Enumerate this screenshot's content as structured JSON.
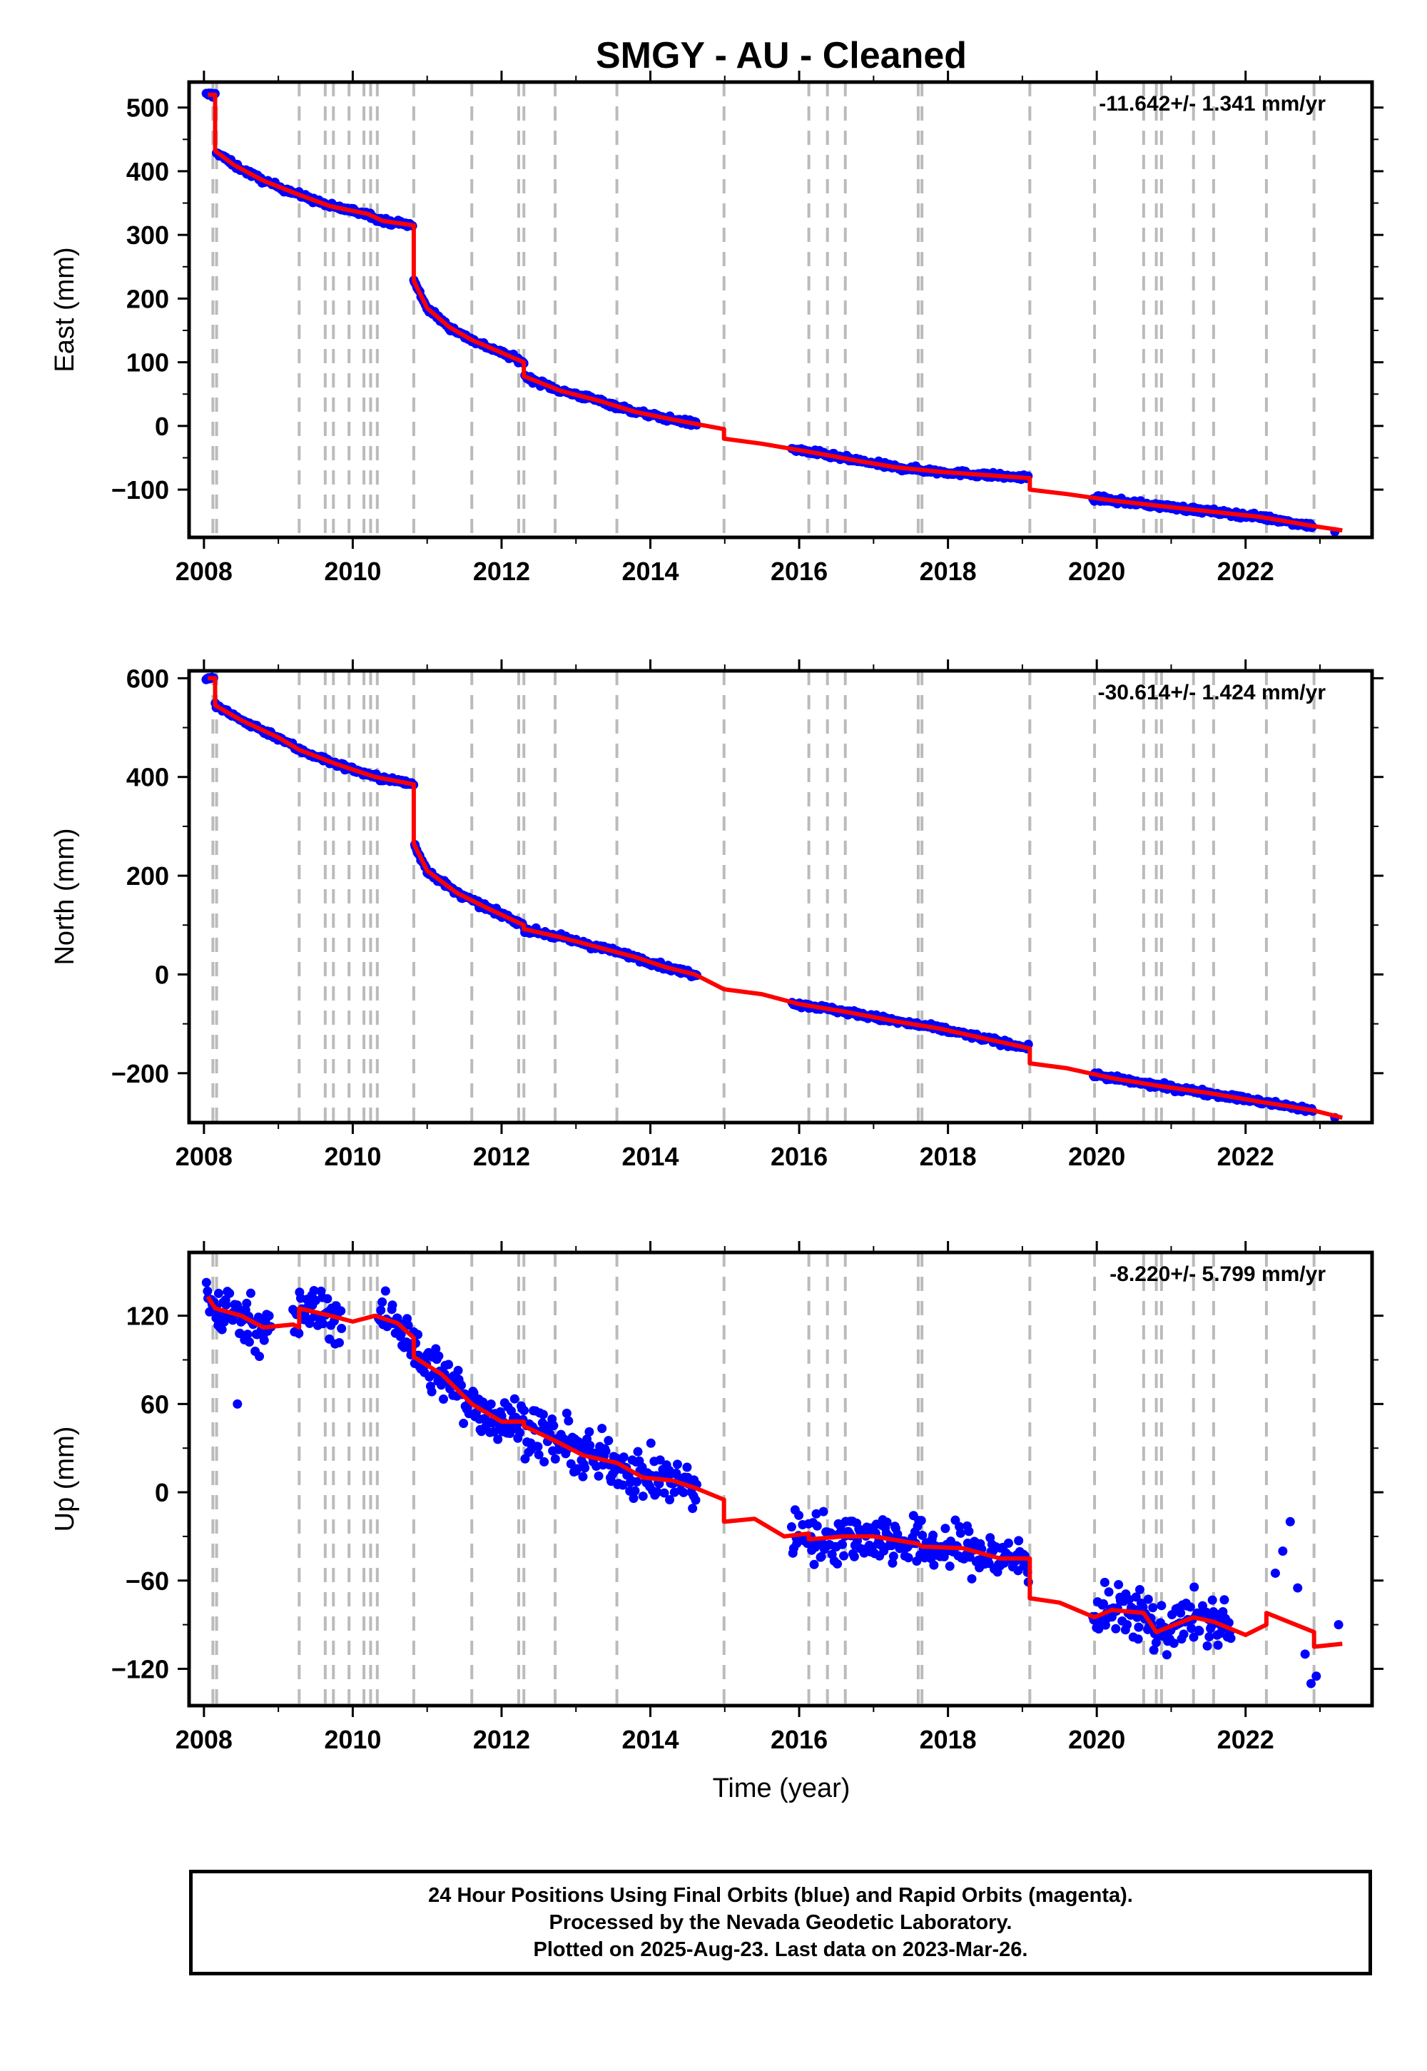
{
  "colors": {
    "final_orbits": "#0000ff",
    "model": "#ff0000",
    "offsets": "#bbbbbb",
    "frame": "#000000"
  },
  "chart_data": [
    {
      "type": "scatter",
      "title": "SMGY  - AU - Cleaned",
      "ylabel": "East (mm)",
      "xlabel": "",
      "rate": "-11.642+/- 1.341 mm/yr",
      "xlim": [
        2007.8,
        2023.7
      ],
      "ylim": [
        -175,
        540
      ],
      "yticks": [
        500,
        400,
        300,
        200,
        100,
        0,
        -100
      ],
      "ytick_labels": [
        "500",
        "400",
        "300",
        "200",
        "100",
        "0",
        "−100"
      ],
      "xticks": [
        2008,
        2010,
        2012,
        2014,
        2016,
        2018,
        2020,
        2022
      ],
      "xtick_labels": [
        "2008",
        "2010",
        "2012",
        "2014",
        "2016",
        "2018",
        "2020",
        "2022"
      ],
      "grid": false,
      "offset_lines": [
        2008.12,
        2008.17,
        2009.28,
        2009.63,
        2009.74,
        2009.95,
        2010.15,
        2010.24,
        2010.33,
        2010.82,
        2011.6,
        2012.23,
        2012.3,
        2012.72,
        2013.55,
        2014.99,
        2016.13,
        2016.38,
        2016.62,
        2017.6,
        2017.65,
        2019.1,
        2019.97,
        2020.63,
        2020.8,
        2020.87,
        2021.3,
        2021.57,
        2022.28,
        2022.92
      ],
      "data_segments": [
        [
          2008.03,
          2008.13
        ],
        [
          2008.15,
          2010.82
        ],
        [
          2010.83,
          2014.62
        ],
        [
          2015.9,
          2019.08
        ],
        [
          2019.95,
          2022.9
        ]
      ],
      "extra_points": [
        [
          2023.2,
          -166
        ]
      ],
      "scatter": 3,
      "model": [
        [
          2008.05,
          520
        ],
        [
          2008.15,
          520
        ],
        [
          2008.15,
          432
        ],
        [
          2008.4,
          410
        ],
        [
          2008.8,
          385
        ],
        [
          2009.28,
          363
        ],
        [
          2009.7,
          345
        ],
        [
          2010.2,
          333
        ],
        [
          2010.4,
          322
        ],
        [
          2010.82,
          315
        ],
        [
          2010.82,
          228
        ],
        [
          2011.0,
          185
        ],
        [
          2011.3,
          155
        ],
        [
          2011.6,
          135
        ],
        [
          2012.0,
          115
        ],
        [
          2012.3,
          100
        ],
        [
          2012.3,
          78
        ],
        [
          2012.8,
          55
        ],
        [
          2013.3,
          40
        ],
        [
          2013.8,
          22
        ],
        [
          2014.3,
          10
        ],
        [
          2014.99,
          -5
        ],
        [
          2014.99,
          -20
        ],
        [
          2015.5,
          -28
        ],
        [
          2016.2,
          -42
        ],
        [
          2016.8,
          -55
        ],
        [
          2017.3,
          -65
        ],
        [
          2017.9,
          -72
        ],
        [
          2018.5,
          -77
        ],
        [
          2019.1,
          -82
        ],
        [
          2019.1,
          -100
        ],
        [
          2019.6,
          -107
        ],
        [
          2020.2,
          -117
        ],
        [
          2020.8,
          -125
        ],
        [
          2021.5,
          -134
        ],
        [
          2022.2,
          -143
        ],
        [
          2022.9,
          -157
        ],
        [
          2023.3,
          -164
        ]
      ]
    },
    {
      "type": "scatter",
      "title": "",
      "ylabel": "North (mm)",
      "xlabel": "",
      "rate": "-30.614+/- 1.424 mm/yr",
      "xlim": [
        2007.8,
        2023.7
      ],
      "ylim": [
        -300,
        615
      ],
      "yticks": [
        600,
        400,
        200,
        0,
        -200
      ],
      "ytick_labels": [
        "600",
        "400",
        "200",
        "0",
        "−200"
      ],
      "xticks": [
        2008,
        2010,
        2012,
        2014,
        2016,
        2018,
        2020,
        2022
      ],
      "xtick_labels": [
        "2008",
        "2010",
        "2012",
        "2014",
        "2016",
        "2018",
        "2020",
        "2022"
      ],
      "grid": false,
      "offset_lines": [
        2008.12,
        2008.17,
        2009.28,
        2009.63,
        2009.74,
        2009.95,
        2010.15,
        2010.24,
        2010.33,
        2010.82,
        2011.6,
        2012.23,
        2012.3,
        2012.72,
        2013.55,
        2014.99,
        2016.13,
        2016.38,
        2016.62,
        2017.6,
        2017.65,
        2019.1,
        2019.97,
        2020.63,
        2020.8,
        2020.87,
        2021.3,
        2021.57,
        2022.28,
        2022.92
      ],
      "data_segments": [
        [
          2008.03,
          2008.13
        ],
        [
          2008.15,
          2010.82
        ],
        [
          2010.83,
          2014.62
        ],
        [
          2015.9,
          2019.08
        ],
        [
          2019.95,
          2022.9
        ]
      ],
      "extra_points": [
        [
          2023.2,
          -290
        ]
      ],
      "scatter": 4,
      "model": [
        [
          2008.05,
          600
        ],
        [
          2008.15,
          600
        ],
        [
          2008.15,
          545
        ],
        [
          2008.5,
          515
        ],
        [
          2009.0,
          480
        ],
        [
          2009.28,
          455
        ],
        [
          2009.8,
          425
        ],
        [
          2010.3,
          400
        ],
        [
          2010.82,
          385
        ],
        [
          2010.82,
          265
        ],
        [
          2011.0,
          210
        ],
        [
          2011.4,
          165
        ],
        [
          2011.8,
          135
        ],
        [
          2012.3,
          100
        ],
        [
          2012.3,
          92
        ],
        [
          2012.8,
          75
        ],
        [
          2013.3,
          55
        ],
        [
          2013.8,
          35
        ],
        [
          2014.2,
          15
        ],
        [
          2014.6,
          0
        ],
        [
          2014.99,
          -30
        ],
        [
          2015.5,
          -40
        ],
        [
          2016.0,
          -60
        ],
        [
          2016.6,
          -75
        ],
        [
          2017.3,
          -95
        ],
        [
          2017.9,
          -110
        ],
        [
          2018.5,
          -130
        ],
        [
          2019.1,
          -150
        ],
        [
          2019.1,
          -180
        ],
        [
          2019.6,
          -190
        ],
        [
          2020.2,
          -210
        ],
        [
          2020.8,
          -225
        ],
        [
          2021.5,
          -240
        ],
        [
          2022.2,
          -258
        ],
        [
          2022.9,
          -275
        ],
        [
          2023.3,
          -290
        ]
      ]
    },
    {
      "type": "scatter",
      "title": "",
      "ylabel": "Up (mm)",
      "xlabel": "Time (year)",
      "rate": "-8.220+/- 5.799 mm/yr",
      "xlim": [
        2007.8,
        2023.7
      ],
      "ylim": [
        -145,
        163
      ],
      "yticks": [
        120,
        60,
        0,
        -60,
        -120
      ],
      "ytick_labels": [
        "120",
        "60",
        "0",
        "−60",
        "−120"
      ],
      "xticks": [
        2008,
        2010,
        2012,
        2014,
        2016,
        2018,
        2020,
        2022
      ],
      "xtick_labels": [
        "2008",
        "2010",
        "2012",
        "2014",
        "2016",
        "2018",
        "2020",
        "2022"
      ],
      "grid": false,
      "offset_lines": [
        2008.12,
        2008.17,
        2009.28,
        2009.63,
        2009.74,
        2009.95,
        2010.15,
        2010.24,
        2010.33,
        2010.82,
        2011.6,
        2012.23,
        2012.3,
        2012.72,
        2013.55,
        2014.99,
        2016.13,
        2016.38,
        2016.62,
        2017.6,
        2017.65,
        2019.1,
        2019.97,
        2020.63,
        2020.8,
        2020.87,
        2021.3,
        2021.57,
        2022.28,
        2022.92
      ],
      "data_segments": [
        [
          2008.03,
          2008.9
        ],
        [
          2009.2,
          2009.85
        ],
        [
          2010.35,
          2010.82
        ],
        [
          2010.83,
          2014.62
        ],
        [
          2015.9,
          2019.08
        ],
        [
          2019.95,
          2021.8
        ]
      ],
      "extra_points": [
        [
          2008.45,
          60
        ],
        [
          2022.4,
          -55
        ],
        [
          2022.5,
          -40
        ],
        [
          2022.6,
          -20
        ],
        [
          2022.7,
          -65
        ],
        [
          2022.8,
          -110
        ],
        [
          2022.88,
          -130
        ],
        [
          2022.95,
          -125
        ],
        [
          2023.25,
          -90
        ]
      ],
      "scatter": 12,
      "model": [
        [
          2008.05,
          133
        ],
        [
          2008.15,
          125
        ],
        [
          2008.5,
          120
        ],
        [
          2008.8,
          112
        ],
        [
          2009.2,
          114
        ],
        [
          2009.28,
          112
        ],
        [
          2009.28,
          125
        ],
        [
          2009.7,
          120
        ],
        [
          2010.0,
          116
        ],
        [
          2010.3,
          120
        ],
        [
          2010.6,
          115
        ],
        [
          2010.82,
          105
        ],
        [
          2010.82,
          92
        ],
        [
          2011.2,
          80
        ],
        [
          2011.6,
          60
        ],
        [
          2012.0,
          48
        ],
        [
          2012.3,
          48
        ],
        [
          2012.3,
          45
        ],
        [
          2012.72,
          35
        ],
        [
          2013.1,
          25
        ],
        [
          2013.55,
          20
        ],
        [
          2013.9,
          10
        ],
        [
          2014.3,
          8
        ],
        [
          2014.6,
          3
        ],
        [
          2014.99,
          -5
        ],
        [
          2014.99,
          -20
        ],
        [
          2015.4,
          -18
        ],
        [
          2015.8,
          -30
        ],
        [
          2016.13,
          -28
        ],
        [
          2016.13,
          -32
        ],
        [
          2016.6,
          -30
        ],
        [
          2017.0,
          -30
        ],
        [
          2017.6,
          -35
        ],
        [
          2017.65,
          -37
        ],
        [
          2018.2,
          -38
        ],
        [
          2018.7,
          -45
        ],
        [
          2019.1,
          -45
        ],
        [
          2019.1,
          -72
        ],
        [
          2019.5,
          -75
        ],
        [
          2019.97,
          -85
        ],
        [
          2020.2,
          -80
        ],
        [
          2020.63,
          -82
        ],
        [
          2020.8,
          -95
        ],
        [
          2021.3,
          -85
        ],
        [
          2021.57,
          -88
        ],
        [
          2022.0,
          -97
        ],
        [
          2022.28,
          -90
        ],
        [
          2022.28,
          -82
        ],
        [
          2022.92,
          -95
        ],
        [
          2022.92,
          -105
        ],
        [
          2023.3,
          -103
        ]
      ]
    }
  ],
  "footer": {
    "line1": "24 Hour Positions Using Final Orbits (blue) and Rapid Orbits (magenta).",
    "line2": "Processed by the Nevada Geodetic Laboratory.",
    "line3": "Plotted on 2025-Aug-23. Last data on 2023-Mar-26."
  }
}
